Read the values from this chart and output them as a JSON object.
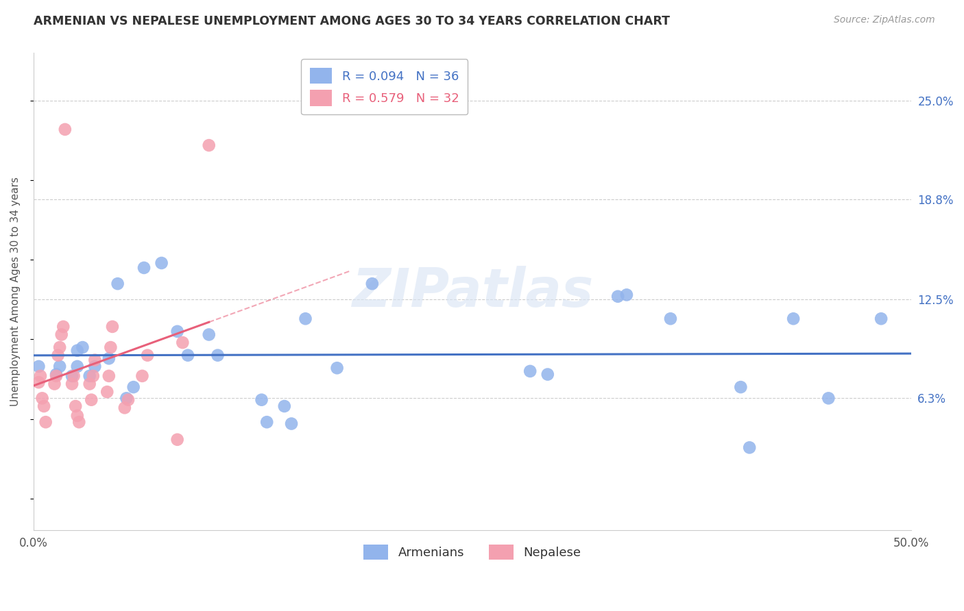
{
  "title": "ARMENIAN VS NEPALESE UNEMPLOYMENT AMONG AGES 30 TO 34 YEARS CORRELATION CHART",
  "source": "Source: ZipAtlas.com",
  "ylabel": "Unemployment Among Ages 30 to 34 years",
  "xlim": [
    0.0,
    0.5
  ],
  "ylim": [
    -0.02,
    0.28
  ],
  "ytick_right": [
    0.063,
    0.125,
    0.188,
    0.25
  ],
  "ytick_right_labels": [
    "6.3%",
    "12.5%",
    "18.8%",
    "25.0%"
  ],
  "armenian_R": 0.094,
  "armenian_N": 36,
  "nepalese_R": 0.579,
  "nepalese_N": 32,
  "armenian_color": "#92B4EC",
  "nepalese_color": "#F4A0B0",
  "trendline_armenian_color": "#4472C4",
  "trendline_nepalese_color": "#E8607A",
  "watermark": "ZIPatlas",
  "armenian_x": [
    0.003,
    0.013,
    0.015,
    0.022,
    0.025,
    0.025,
    0.028,
    0.032,
    0.035,
    0.043,
    0.048,
    0.053,
    0.057,
    0.063,
    0.073,
    0.082,
    0.088,
    0.1,
    0.105,
    0.13,
    0.133,
    0.143,
    0.147,
    0.155,
    0.173,
    0.193,
    0.283,
    0.293,
    0.333,
    0.338,
    0.363,
    0.403,
    0.408,
    0.433,
    0.453,
    0.483
  ],
  "armenian_y": [
    0.083,
    0.078,
    0.083,
    0.077,
    0.083,
    0.093,
    0.095,
    0.077,
    0.083,
    0.088,
    0.135,
    0.063,
    0.07,
    0.145,
    0.148,
    0.105,
    0.09,
    0.103,
    0.09,
    0.062,
    0.048,
    0.058,
    0.047,
    0.113,
    0.082,
    0.135,
    0.08,
    0.078,
    0.127,
    0.128,
    0.113,
    0.07,
    0.032,
    0.113,
    0.063,
    0.113
  ],
  "nepalese_x": [
    0.003,
    0.004,
    0.005,
    0.006,
    0.007,
    0.012,
    0.013,
    0.014,
    0.015,
    0.016,
    0.017,
    0.018,
    0.022,
    0.023,
    0.024,
    0.025,
    0.026,
    0.032,
    0.033,
    0.034,
    0.035,
    0.042,
    0.043,
    0.044,
    0.045,
    0.052,
    0.054,
    0.062,
    0.065,
    0.082,
    0.085,
    0.1
  ],
  "nepalese_y": [
    0.073,
    0.077,
    0.063,
    0.058,
    0.048,
    0.072,
    0.077,
    0.09,
    0.095,
    0.103,
    0.108,
    0.232,
    0.072,
    0.077,
    0.058,
    0.052,
    0.048,
    0.072,
    0.062,
    0.077,
    0.087,
    0.067,
    0.077,
    0.095,
    0.108,
    0.057,
    0.062,
    0.077,
    0.09,
    0.037,
    0.098,
    0.222
  ]
}
